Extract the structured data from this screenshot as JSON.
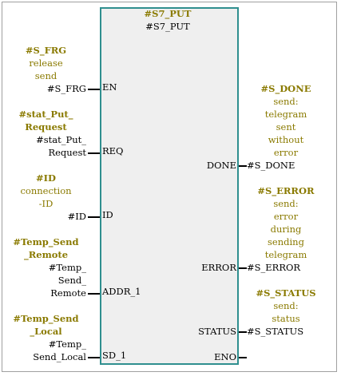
{
  "block": {
    "instance": "#S7_PUT",
    "type": "#S7_PUT"
  },
  "inputs": {
    "en": {
      "pin": "EN",
      "tag_name": "#S_FRG",
      "comment_1": "release",
      "comment_2": "send",
      "actual": "#S_FRG"
    },
    "req": {
      "pin": "REQ",
      "tag_name_1": "#stat_Put_",
      "tag_name_2": "Request",
      "actual_1": "#stat_Put_",
      "actual_2": "Request"
    },
    "id": {
      "pin": "ID",
      "tag_name": "#ID",
      "comment_1": "connection",
      "comment_2": "-ID",
      "actual": "#ID"
    },
    "addr1": {
      "pin": "ADDR_1",
      "tag_name_1": "#Temp_Send",
      "tag_name_2": "_Remote",
      "actual_1": "#Temp_",
      "actual_2": "Send_",
      "actual_3": "Remote"
    },
    "sd1": {
      "pin": "SD_1",
      "tag_name_1": "#Temp_Send",
      "tag_name_2": "_Local",
      "actual_1": "#Temp_",
      "actual_2": "Send_Local"
    }
  },
  "outputs": {
    "done": {
      "pin": "DONE",
      "tag_name": "#S_DONE",
      "comment_1": "send:",
      "comment_2": "telegram",
      "comment_3": "sent",
      "comment_4": "without",
      "comment_5": "error",
      "actual": "#S_DONE"
    },
    "error": {
      "pin": "ERROR",
      "tag_name": "#S_ERROR",
      "comment_1": "send:",
      "comment_2": "error",
      "comment_3": "during",
      "comment_4": "sending",
      "comment_5": "telegram",
      "actual": "#S_ERROR"
    },
    "status": {
      "pin": "STATUS",
      "tag_name": "#S_STATUS",
      "comment_1": "send:",
      "comment_2": "status",
      "actual": "#S_STATUS"
    },
    "eno": {
      "pin": "ENO"
    }
  }
}
